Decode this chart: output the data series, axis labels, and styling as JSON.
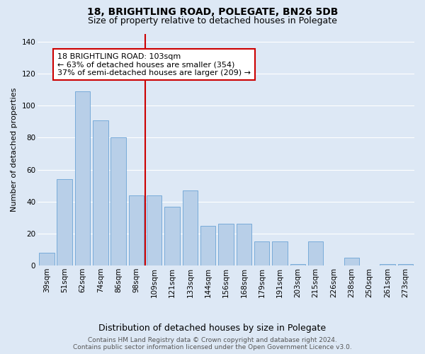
{
  "title": "18, BRIGHTLING ROAD, POLEGATE, BN26 5DB",
  "subtitle": "Size of property relative to detached houses in Polegate",
  "xlabel": "Distribution of detached houses by size in Polegate",
  "ylabel": "Number of detached properties",
  "categories": [
    "39sqm",
    "51sqm",
    "62sqm",
    "74sqm",
    "86sqm",
    "98sqm",
    "109sqm",
    "121sqm",
    "133sqm",
    "144sqm",
    "156sqm",
    "168sqm",
    "179sqm",
    "191sqm",
    "203sqm",
    "215sqm",
    "226sqm",
    "238sqm",
    "250sqm",
    "261sqm",
    "273sqm"
  ],
  "values": [
    8,
    54,
    109,
    91,
    80,
    44,
    44,
    37,
    47,
    25,
    26,
    26,
    15,
    15,
    1,
    15,
    0,
    5,
    0,
    1,
    1
  ],
  "bar_color": "#b8cfe8",
  "bar_edgecolor": "#6ba3d6",
  "annotation_text": "18 BRIGHTLING ROAD: 103sqm\n← 63% of detached houses are smaller (354)\n37% of semi-detached houses are larger (209) →",
  "annotation_box_color": "#ffffff",
  "annotation_box_edgecolor": "#cc0000",
  "vline_color": "#cc0000",
  "ylim": [
    0,
    145
  ],
  "background_color": "#dde8f5",
  "grid_color": "#ffffff",
  "footer": "Contains HM Land Registry data © Crown copyright and database right 2024.\nContains public sector information licensed under the Open Government Licence v3.0.",
  "title_fontsize": 10,
  "subtitle_fontsize": 9,
  "xlabel_fontsize": 9,
  "ylabel_fontsize": 8,
  "tick_fontsize": 7.5,
  "annotation_fontsize": 8,
  "footer_fontsize": 6.5
}
